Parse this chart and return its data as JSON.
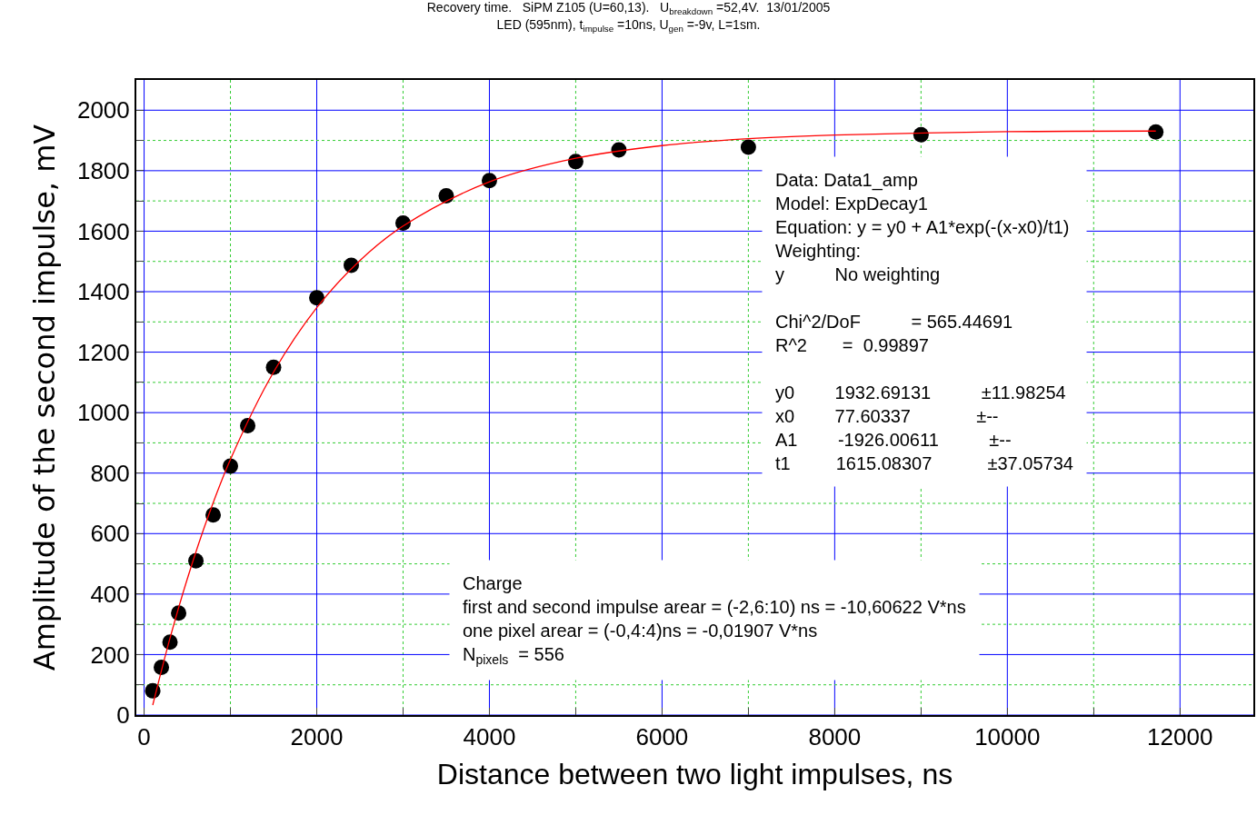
{
  "chart_data": {
    "type": "scatter",
    "title": "Recovery time.   SiPM Z105 (U=60,13).   U$_{breakdown}$ =52,4V.  13/01/2005\nLED (595nm), t$_{impulse}$ =10ns, U$_{gen}$ =-9v, L=1sm.",
    "xlabel": "Distance between two light impulses, ns",
    "ylabel": "Amplitude of the second impulse, mV",
    "series": [
      {
        "color": "#000000",
        "marker": "circle",
        "x": [
          100,
          200,
          300,
          400,
          600,
          800,
          1000,
          1200,
          1500,
          2000,
          2400,
          3000,
          3500,
          4000,
          5000,
          5500,
          7000,
          9000,
          11720
        ],
        "values": [
          80,
          158,
          241,
          337,
          510,
          662,
          823,
          957,
          1150,
          1380,
          1487,
          1627,
          1717,
          1767,
          1830,
          1869,
          1878,
          1919,
          1928
        ]
      },
      {
        "type": "line",
        "color": "#ff0000",
        "line_style": "solid",
        "x": [
          100,
          300,
          500,
          750,
          1000,
          1500,
          2000,
          2500,
          3000,
          4000,
          5000,
          6000,
          7000,
          8000,
          10000,
          11720
        ],
        "values": [
          33,
          254,
          450,
          663,
          845,
          1134,
          1347,
          1503,
          1617,
          1763,
          1841,
          1883,
          1906,
          1918,
          1929,
          1931
        ]
      }
    ],
    "xlim": [
      -90,
      12850
    ],
    "ylim": [
      0,
      2100
    ],
    "xticks": [
      0,
      {
        "value": 1000,
        "label": null
      },
      2000,
      {
        "value": 3000,
        "label": null
      },
      4000,
      {
        "value": 5000,
        "label": null
      },
      6000,
      {
        "value": 7000,
        "label": null
      },
      8000,
      {
        "value": 9000,
        "label": null
      },
      10000,
      {
        "value": 11000,
        "label": null
      },
      12000
    ],
    "yticks": [
      0,
      {
        "value": 100,
        "label": null
      },
      200,
      {
        "value": 300,
        "label": null
      },
      400,
      {
        "value": 500,
        "label": null
      },
      600,
      {
        "value": 700,
        "label": null
      },
      800,
      {
        "value": 900,
        "label": null
      },
      1000,
      {
        "value": 1100,
        "label": null
      },
      1200,
      {
        "value": 1300,
        "label": null
      },
      1400,
      {
        "value": 1500,
        "label": null
      },
      1600,
      {
        "value": 1700,
        "label": null
      },
      1800,
      {
        "value": 1900,
        "label": null
      },
      2000
    ],
    "grid": true,
    "annotations": [
      "Data: Data1_amp\nModel: ExpDecay1\nEquation: y = y0 + A1*exp(-(x-x0)/t1)\nWeighting:\ny          No weighting\n\nChi^2/DoF          = 565.44691\nR^2       =  0.99897\n\ny0        1932.69131          ±11.98254\nx0        77.60337             ±--\nA1        -1926.00611          ±--\nt1         1615.08307           ±37.05734",
      "Charge\nfirst and second impulse arear = (-2,6:10) ns = -10,60622 V*ns\none pixel arear = (-0,4:4)ns = -0,01907 V*ns\nN$_{pixels}$  = 556"
    ]
  }
}
